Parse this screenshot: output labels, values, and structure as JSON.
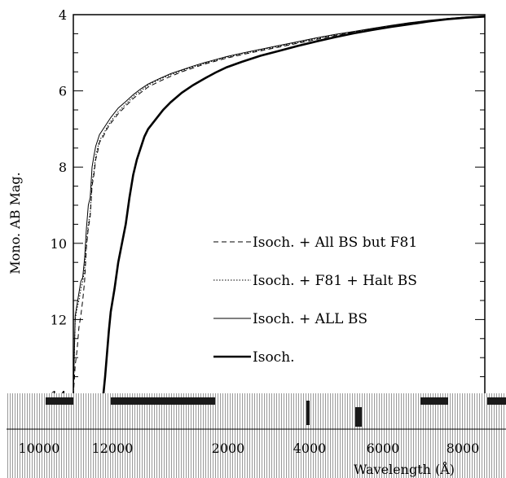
{
  "chart_data": {
    "type": "line",
    "ylabel": "Mono. AB Mag.",
    "xlabel": "Wavelength (Å)",
    "ylim": [
      4,
      14
    ],
    "y_inverted": true,
    "y_ticks": [
      "4",
      "6",
      "8",
      "10",
      "12",
      "14"
    ],
    "x_ticks": [
      "10000",
      "12000",
      "2000",
      "4000",
      "6000",
      "8000"
    ],
    "legend_placement": "center-right",
    "series": [
      {
        "name": "Isoch. + All BS but F81",
        "style": "dashed",
        "x": [
          1.0,
          1.05,
          1.1,
          1.15,
          1.2,
          1.25,
          1.3,
          1.35,
          1.4,
          1.45,
          1.5,
          1.55,
          1.6,
          1.65,
          1.7,
          1.8,
          1.9,
          2.0,
          2.2,
          2.4,
          2.6,
          2.8,
          3.0,
          3.3,
          3.6,
          3.9,
          4.2,
          4.5,
          4.8,
          5.1,
          5.5,
          6.0,
          6.5,
          7.0,
          7.5,
          8.0,
          8.5,
          9.0,
          9.5,
          10.0,
          10.5,
          11.0,
          11.5,
          12.0
        ],
        "y": [
          14.0,
          13.2,
          12.8,
          12.2,
          11.9,
          11.5,
          11.0,
          10.1,
          9.6,
          9.3,
          8.5,
          8.2,
          7.8,
          7.6,
          7.35,
          7.2,
          7.0,
          6.85,
          6.6,
          6.4,
          6.2,
          6.05,
          5.9,
          5.75,
          5.62,
          5.5,
          5.4,
          5.3,
          5.22,
          5.14,
          5.05,
          4.95,
          4.85,
          4.75,
          4.65,
          4.55,
          4.46,
          4.38,
          4.3,
          4.23,
          4.17,
          4.12,
          4.08,
          4.05
        ]
      },
      {
        "name": "Isoch. + F81 + Halt BS",
        "style": "dotted",
        "x": [
          1.0,
          1.05,
          1.1,
          1.15,
          1.2,
          1.25,
          1.3,
          1.35,
          1.4,
          1.45,
          1.5,
          1.55,
          1.6,
          1.65,
          1.7,
          1.8,
          1.9,
          2.0,
          2.2,
          2.4,
          2.6,
          2.8,
          3.0,
          3.3,
          3.6,
          3.9,
          4.2,
          4.5,
          4.8,
          5.1,
          5.5,
          6.0,
          6.5,
          7.0,
          7.5,
          8.0,
          8.5,
          9.0,
          9.5,
          10.0,
          10.5,
          11.0,
          11.5,
          12.0
        ],
        "y": [
          14.0,
          12.0,
          11.7,
          11.5,
          11.2,
          11.0,
          10.7,
          10.0,
          9.5,
          9.2,
          8.4,
          8.1,
          7.7,
          7.5,
          7.3,
          7.15,
          6.95,
          6.8,
          6.55,
          6.35,
          6.15,
          6.0,
          5.85,
          5.7,
          5.58,
          5.47,
          5.37,
          5.28,
          5.2,
          5.12,
          5.03,
          4.93,
          4.83,
          4.73,
          4.63,
          4.53,
          4.45,
          4.37,
          4.29,
          4.22,
          4.16,
          4.11,
          4.07,
          4.04
        ]
      },
      {
        "name": "Isoch. + ALL BS",
        "style": "solid-thin",
        "x": [
          1.0,
          1.05,
          1.1,
          1.15,
          1.2,
          1.25,
          1.3,
          1.35,
          1.4,
          1.45,
          1.5,
          1.55,
          1.6,
          1.65,
          1.7,
          1.8,
          1.9,
          2.0,
          2.2,
          2.4,
          2.6,
          2.8,
          3.0,
          3.3,
          3.6,
          3.9,
          4.2,
          4.5,
          4.8,
          5.1,
          5.5,
          6.0,
          6.5,
          7.0,
          7.5,
          8.0,
          8.5,
          9.0,
          9.5,
          10.0,
          10.5,
          11.0,
          11.5,
          12.0
        ],
        "y": [
          14.0,
          11.9,
          11.6,
          11.3,
          11.0,
          10.9,
          10.4,
          9.6,
          9.0,
          8.8,
          8.0,
          7.7,
          7.45,
          7.3,
          7.15,
          7.0,
          6.85,
          6.7,
          6.45,
          6.28,
          6.1,
          5.95,
          5.82,
          5.68,
          5.55,
          5.45,
          5.35,
          5.26,
          5.18,
          5.1,
          5.01,
          4.91,
          4.81,
          4.71,
          4.61,
          4.52,
          4.44,
          4.36,
          4.28,
          4.21,
          4.15,
          4.1,
          4.06,
          4.03
        ]
      },
      {
        "name": "Isoch.",
        "style": "solid-thick",
        "x": [
          1.8,
          1.85,
          1.9,
          1.95,
          2.0,
          2.1,
          2.2,
          2.3,
          2.4,
          2.5,
          2.6,
          2.7,
          2.8,
          2.9,
          3.0,
          3.2,
          3.4,
          3.6,
          3.9,
          4.2,
          4.5,
          4.8,
          5.1,
          5.5,
          6.0,
          6.5,
          7.0,
          7.5,
          8.0,
          8.5,
          9.0,
          9.5,
          10.0,
          10.5,
          11.0,
          11.5,
          12.0
        ],
        "y": [
          14.0,
          13.5,
          12.9,
          12.3,
          11.8,
          11.2,
          10.5,
          10.0,
          9.5,
          8.8,
          8.2,
          7.8,
          7.5,
          7.2,
          7.0,
          6.75,
          6.5,
          6.3,
          6.05,
          5.85,
          5.68,
          5.52,
          5.38,
          5.24,
          5.08,
          4.95,
          4.82,
          4.7,
          4.59,
          4.49,
          4.4,
          4.32,
          4.25,
          4.18,
          4.12,
          4.08,
          4.05
        ]
      }
    ]
  }
}
